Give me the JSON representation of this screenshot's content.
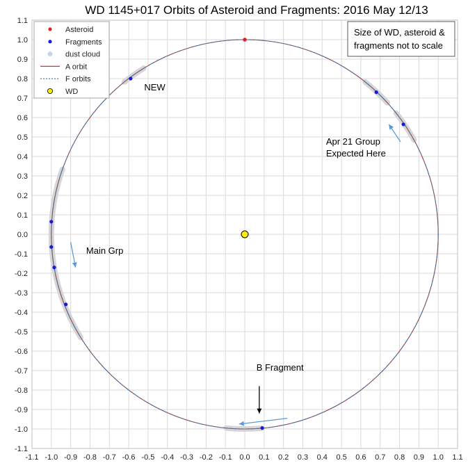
{
  "chart_data": {
    "type": "scatter",
    "title": "WD 1145+017 Orbits of Asteroid and Fragments: 2016 May 12/13",
    "xlim": [
      -1.1,
      1.1
    ],
    "ylim": [
      -1.1,
      1.1
    ],
    "x_ticks": [
      "-1.1",
      "-1.0",
      "-0.9",
      "-0.8",
      "-0.7",
      "-0.6",
      "-0.5",
      "-0.4",
      "-0.3",
      "-0.2",
      "-0.1",
      "0.0",
      "0.1",
      "0.2",
      "0.3",
      "0.4",
      "0.5",
      "0.6",
      "0.7",
      "0.8",
      "0.9",
      "1.0",
      "1.1"
    ],
    "y_ticks": [
      "1.1",
      "1.0",
      "0.9",
      "0.8",
      "0.7",
      "0.6",
      "0.5",
      "0.4",
      "0.3",
      "0.2",
      "0.1",
      "0.0",
      "-0.1",
      "-0.2",
      "-0.3",
      "-0.4",
      "-0.5",
      "-0.6",
      "-0.7",
      "-0.8",
      "-0.9",
      "-1.0",
      "-1.1"
    ],
    "grid": true,
    "legend_position": "top-left",
    "legend": [
      {
        "label": "Asteroid",
        "kind": "dot",
        "color": "#e3202a"
      },
      {
        "label": "Fragments",
        "kind": "dot",
        "color": "#1a1ad6"
      },
      {
        "label": "dust cloud",
        "kind": "dot",
        "color": "#c9d4e6"
      },
      {
        "label": "A orbit",
        "kind": "line",
        "color": "#c0392b"
      },
      {
        "label": "F orbits",
        "kind": "dash",
        "color": "#2e75b6"
      },
      {
        "label": "WD",
        "kind": "wd",
        "color": "#ffef00"
      }
    ],
    "orbit_radius": 1.0,
    "wd": {
      "x": 0.0,
      "y": 0.0
    },
    "asteroid": {
      "x": 0.0,
      "y": 1.0
    },
    "fragments": [
      {
        "x": -0.59,
        "y": 0.8
      },
      {
        "x": 0.68,
        "y": 0.73
      },
      {
        "x": 0.82,
        "y": 0.565
      },
      {
        "x": -1.0,
        "y": 0.065
      },
      {
        "x": -1.0,
        "y": -0.065
      },
      {
        "x": -0.985,
        "y": -0.17
      },
      {
        "x": -0.925,
        "y": -0.36
      },
      {
        "x": 0.09,
        "y": -0.995
      }
    ],
    "dust_arcs": [
      {
        "from_deg": 121.5,
        "to_deg": 128.5
      },
      {
        "from_deg": 42.5,
        "to_deg": 51.5
      },
      {
        "from_deg": 29.0,
        "to_deg": 38.5
      },
      {
        "from_deg": 160.5,
        "to_deg": 197.5
      },
      {
        "from_deg": 197.5,
        "to_deg": 212.0
      },
      {
        "from_deg": 264.5,
        "to_deg": 275.0
      }
    ],
    "annotations": [
      {
        "text": "NEW",
        "x": -0.52,
        "y": 0.74
      },
      {
        "text": "Main Grp",
        "x": -0.82,
        "y": -0.1
      },
      {
        "text": "B Fragment",
        "x": 0.06,
        "y": -0.7
      },
      {
        "text": "Apr 21 Group",
        "x": 0.42,
        "y": 0.46
      },
      {
        "text": "Expected Here",
        "x": 0.42,
        "y": 0.4
      }
    ],
    "note_lines": [
      "Size of WD, asteroid &",
      "fragments not to scale"
    ],
    "arrows": [
      {
        "from": [
          -0.9,
          -0.04
        ],
        "to": [
          -0.875,
          -0.17
        ],
        "color": "#5b9bd5"
      },
      {
        "from": [
          0.805,
          0.475
        ],
        "to": [
          0.745,
          0.565
        ],
        "color": "#5b9bd5"
      },
      {
        "from": [
          0.22,
          -0.945
        ],
        "to": [
          -0.03,
          -0.975
        ],
        "color": "#5b9bd5"
      },
      {
        "from": [
          0.075,
          -0.78
        ],
        "to": [
          0.075,
          -0.92
        ],
        "color": "#000000"
      }
    ]
  }
}
